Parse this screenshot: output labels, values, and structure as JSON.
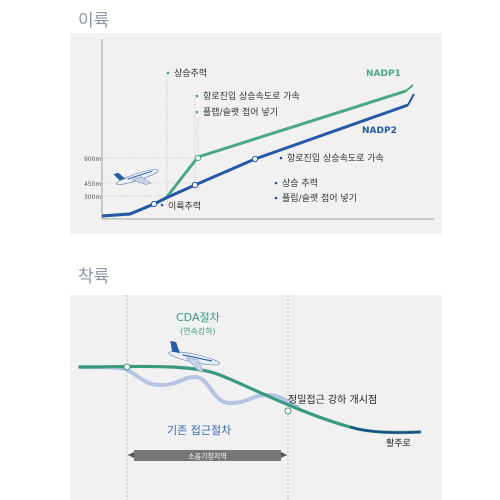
{
  "takeoff": {
    "title": "이륙",
    "axis_labels": [
      "900m",
      "450m",
      "300m"
    ],
    "label_climb_thrust": "상승추력",
    "label_route_entry": "항로진입 상승속도로 가속",
    "label_flap_retract": "플랩/슬랫 접어 넣기",
    "label_nadp1": "NADP1",
    "label_nadp2": "NADP2",
    "label_route_entry_2": "항로진입 상승속도로 가속",
    "label_climb_thrust_2": "상승 추력",
    "label_flap_retract_2": "플립/슬랫 접어 넣기",
    "label_takeoff_thrust": "이륙추력",
    "colors": {
      "nadp1": "#4aa882",
      "nadp2": "#2558a8"
    }
  },
  "landing": {
    "title": "착륙",
    "label_cda": "CDA절차",
    "label_cda_sub": "(연속강하)",
    "label_conventional": "기존 접근절차",
    "label_precision": "정밀접근 강하 개시점",
    "label_runway": "활주로",
    "label_noise_zone": "소음기청지역",
    "colors": {
      "cda": "#3a9a80",
      "conventional": "#b4c4e2"
    }
  }
}
